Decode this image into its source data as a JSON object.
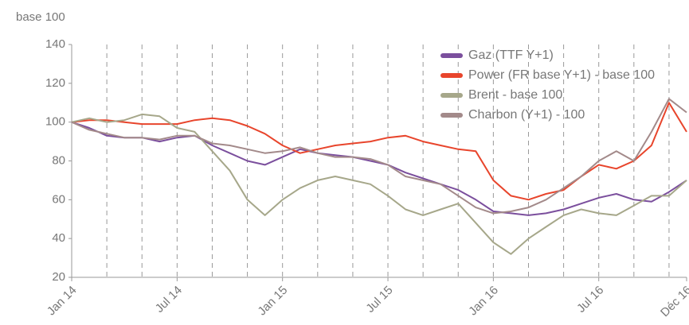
{
  "chart_data": {
    "type": "line",
    "y_label": "base 100",
    "categories": [
      "Jan 14",
      null,
      null,
      null,
      null,
      null,
      "Jul 14",
      null,
      null,
      null,
      null,
      null,
      "Jan 15",
      null,
      null,
      null,
      null,
      null,
      "Jul 15",
      null,
      null,
      null,
      null,
      null,
      "Jan 16",
      null,
      null,
      null,
      null,
      null,
      "Jul 16",
      null,
      null,
      null,
      null,
      "Déc 16"
    ],
    "series": [
      {
        "name": "Gaz (TTF Y+1)",
        "color": "#7b4f9d",
        "values": [
          100,
          97,
          93,
          92,
          92,
          90,
          92,
          93,
          88,
          84,
          80,
          78,
          82,
          86,
          84,
          83,
          82,
          80,
          78,
          74,
          71,
          68,
          65,
          60,
          54,
          53,
          52,
          53,
          55,
          58,
          61,
          63,
          60,
          59,
          64,
          70
        ]
      },
      {
        "name": "Power (FR base Y+1) - base 100",
        "color": "#e8452c",
        "values": [
          100,
          101,
          101,
          100,
          99,
          99,
          99,
          101,
          102,
          101,
          98,
          94,
          88,
          84,
          86,
          88,
          89,
          90,
          92,
          93,
          90,
          88,
          86,
          85,
          70,
          62,
          60,
          63,
          65,
          72,
          78,
          76,
          80,
          88,
          110,
          95
        ]
      },
      {
        "name": "Brent - base 100",
        "color": "#a6a78a",
        "values": [
          100,
          102,
          100,
          101,
          104,
          103,
          97,
          95,
          85,
          75,
          60,
          52,
          60,
          66,
          70,
          72,
          70,
          68,
          62,
          55,
          52,
          55,
          58,
          48,
          38,
          32,
          40,
          46,
          52,
          55,
          53,
          52,
          57,
          62,
          62,
          70
        ]
      },
      {
        "name": "Charbon (Y+1) - 100",
        "color": "#a38a8a",
        "values": [
          100,
          96,
          94,
          92,
          92,
          91,
          93,
          93,
          89,
          88,
          86,
          84,
          85,
          87,
          84,
          82,
          82,
          81,
          78,
          72,
          70,
          68,
          62,
          56,
          53,
          54,
          56,
          60,
          66,
          72,
          80,
          85,
          80,
          95,
          112,
          105
        ]
      }
    ],
    "ylim": [
      20,
      140
    ],
    "yticks": [
      20,
      40,
      60,
      80,
      100,
      120,
      140
    ],
    "grid": true,
    "legend": "upper right"
  }
}
